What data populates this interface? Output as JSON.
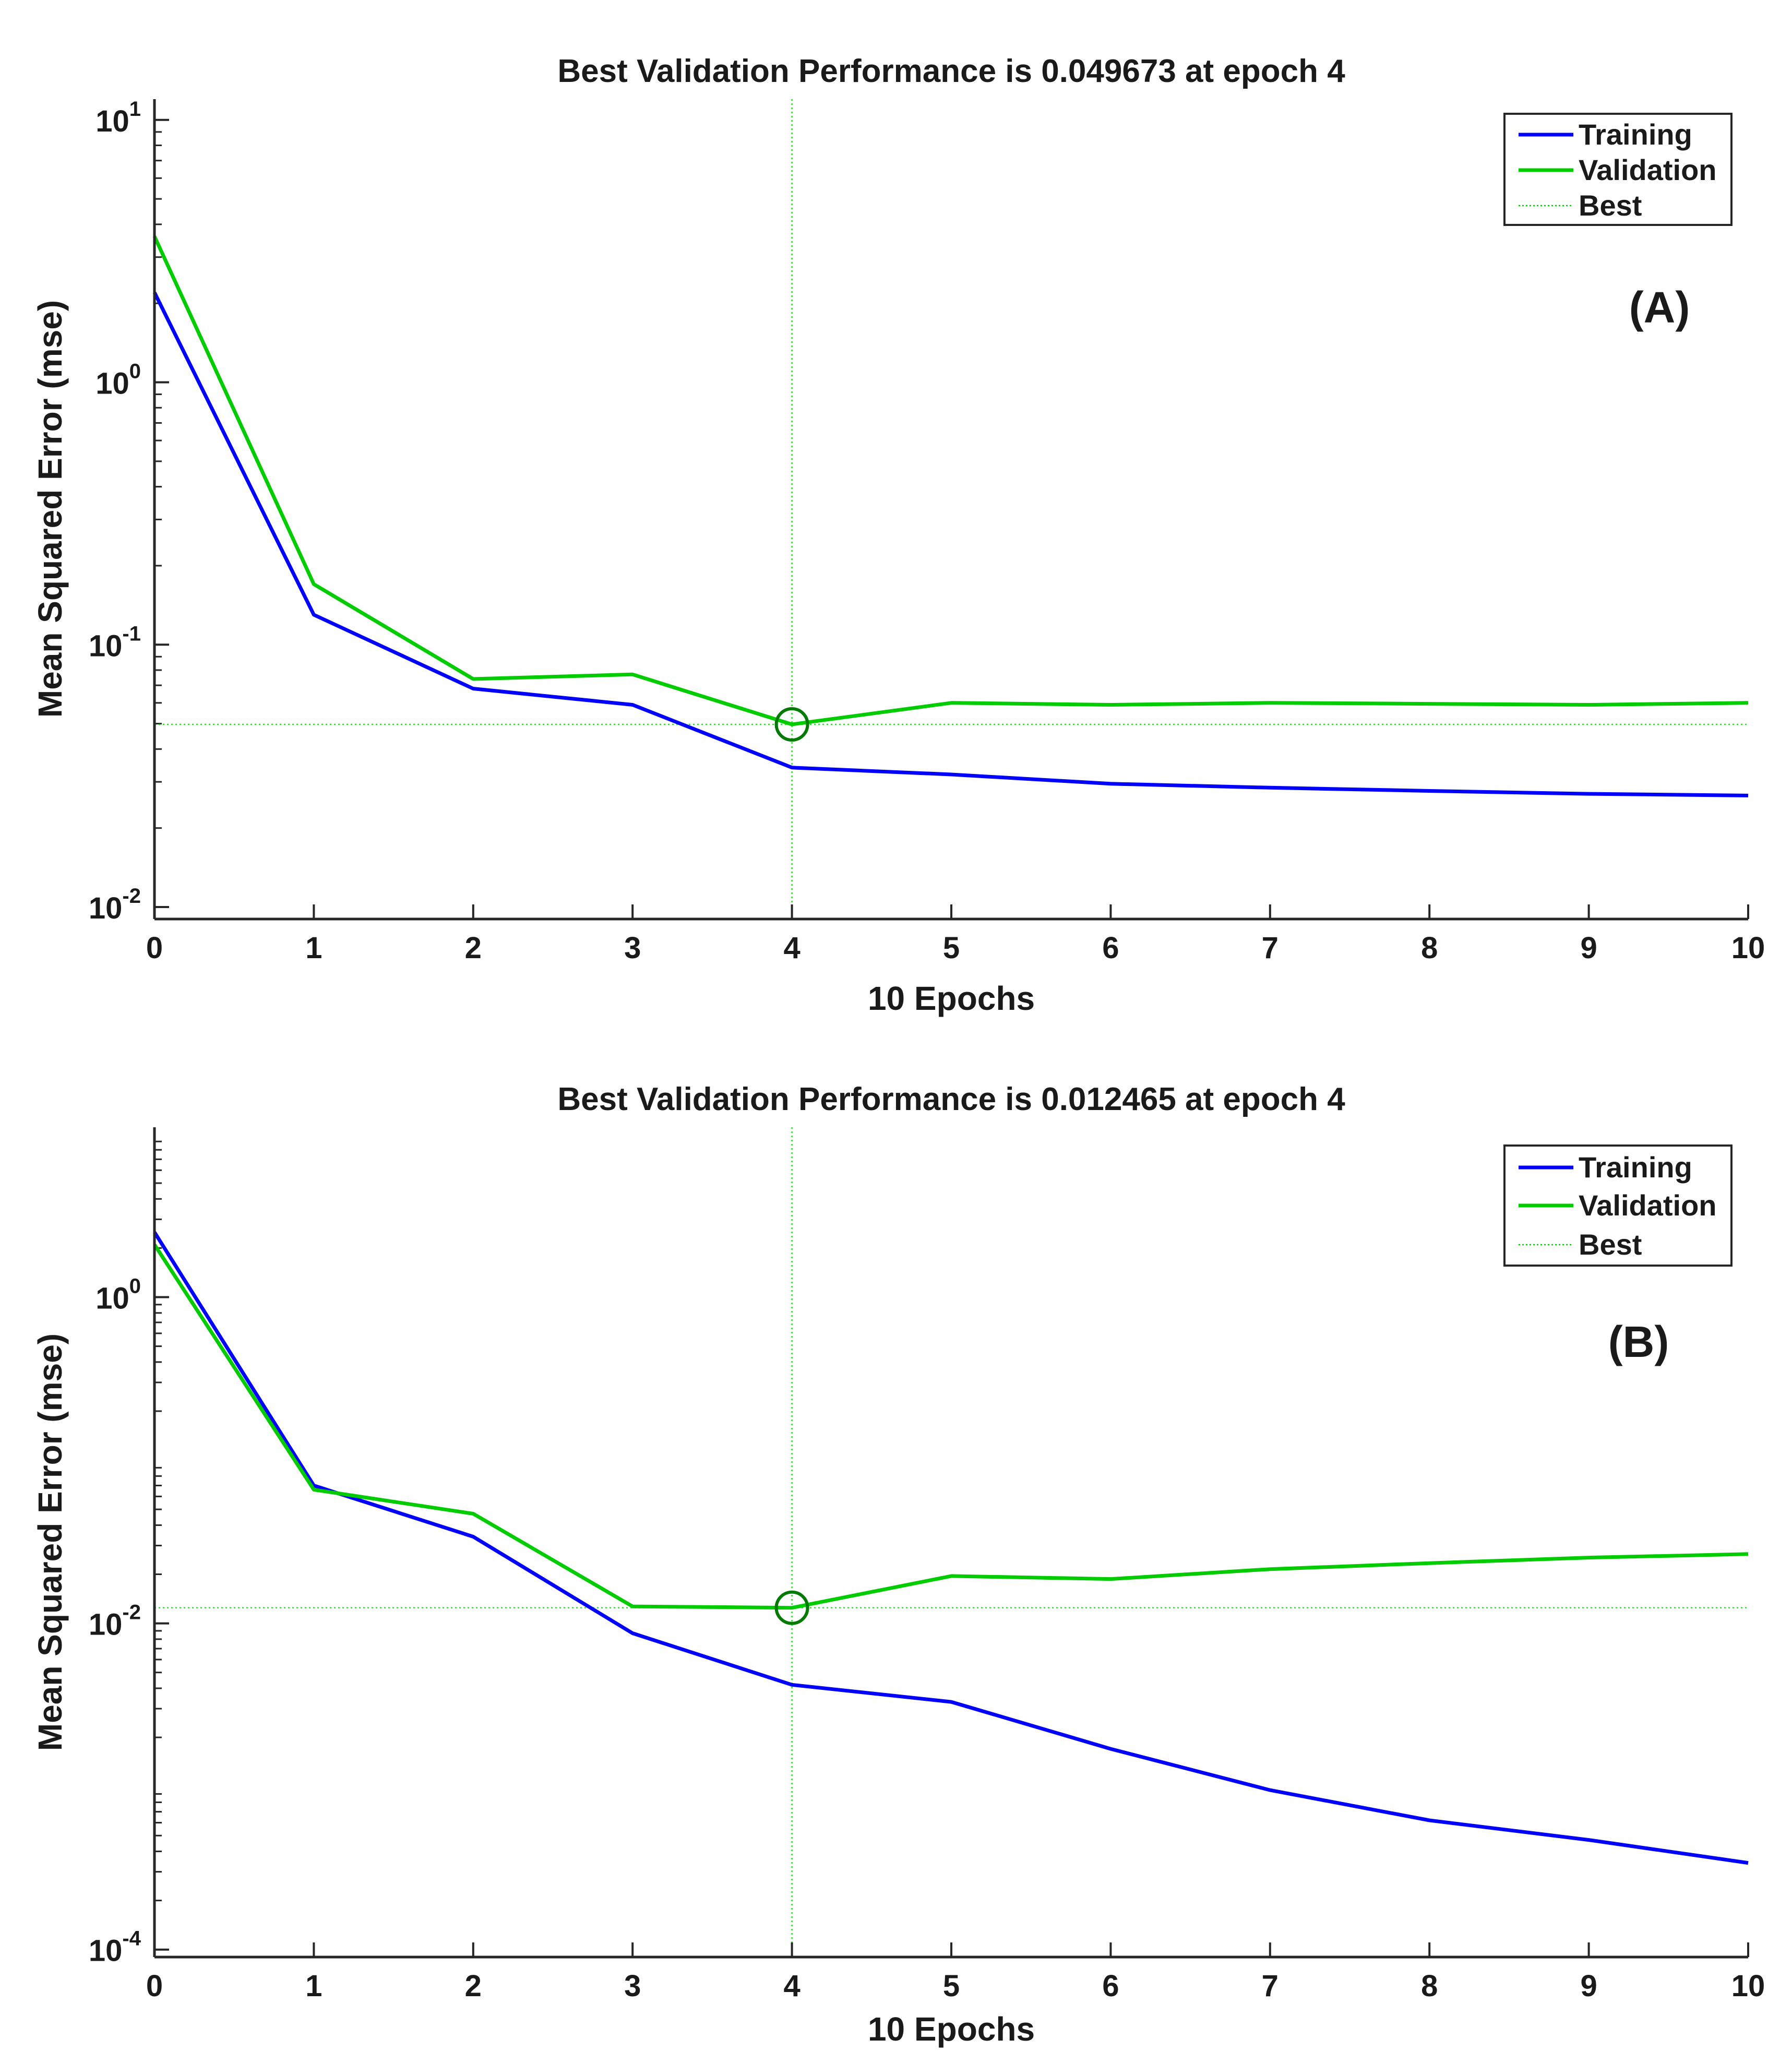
{
  "chart_data": [
    {
      "type": "line",
      "panel_label": "(A)",
      "title": "Best Validation Performance is 0.049673 at epoch 4",
      "xlabel": "10 Epochs",
      "ylabel": "Mean Squared Error  (mse)",
      "xlim": [
        0,
        10
      ],
      "ylim": [
        0.009,
        12
      ],
      "yscale": "log",
      "x": [
        0,
        1,
        2,
        3,
        4,
        5,
        6,
        7,
        8,
        9,
        10
      ],
      "xticks": [
        "0",
        "1",
        "2",
        "3",
        "4",
        "5",
        "6",
        "7",
        "8",
        "9",
        "10"
      ],
      "yticks": [
        {
          "value": 10,
          "base": "10",
          "exp": "1"
        },
        {
          "value": 1,
          "base": "10",
          "exp": "0"
        },
        {
          "value": 0.1,
          "base": "10",
          "exp": "-1"
        },
        {
          "value": 0.01,
          "base": "10",
          "exp": "-2"
        }
      ],
      "series": [
        {
          "name": "Training",
          "color": "#0000ff",
          "values": [
            2.2,
            0.13,
            0.068,
            0.059,
            0.034,
            0.032,
            0.0295,
            0.0285,
            0.0277,
            0.027,
            0.0266
          ]
        },
        {
          "name": "Validation",
          "color": "#00cc00",
          "values": [
            3.6,
            0.17,
            0.074,
            0.077,
            0.049673,
            0.06,
            0.059,
            0.06,
            0.0595,
            0.059,
            0.06
          ]
        }
      ],
      "best": {
        "name": "Best",
        "epoch": 4,
        "value": 0.049673,
        "color": "#00cc00"
      },
      "legend": {
        "position": "top-right",
        "entries": [
          "Training",
          "Validation",
          "Best"
        ]
      }
    },
    {
      "type": "line",
      "panel_label": "(B)",
      "title": "Best Validation Performance is 0.012465 at epoch 4",
      "xlabel": "10 Epochs",
      "ylabel": "Mean Squared Error  (mse)",
      "xlim": [
        0,
        10
      ],
      "ylim": [
        9e-05,
        11
      ],
      "yscale": "log",
      "x": [
        0,
        1,
        2,
        3,
        4,
        5,
        6,
        7,
        8,
        9,
        10
      ],
      "xticks": [
        "0",
        "1",
        "2",
        "3",
        "4",
        "5",
        "6",
        "7",
        "8",
        "9",
        "10"
      ],
      "yticks": [
        {
          "value": 1,
          "base": "10",
          "exp": "0"
        },
        {
          "value": 0.01,
          "base": "10",
          "exp": "-2"
        },
        {
          "value": 0.0001,
          "base": "10",
          "exp": "-4"
        }
      ],
      "series": [
        {
          "name": "Training",
          "color": "#0000ff",
          "values": [
            2.5,
            0.07,
            0.034,
            0.0087,
            0.0042,
            0.0033,
            0.0017,
            0.00095,
            0.00062,
            0.00047,
            0.00034
          ]
        },
        {
          "name": "Validation",
          "color": "#00cc00",
          "values": [
            2.1,
            0.066,
            0.047,
            0.0127,
            0.012465,
            0.0195,
            0.0187,
            0.0215,
            0.0234,
            0.0253,
            0.0266
          ]
        }
      ],
      "best": {
        "name": "Best",
        "epoch": 4,
        "value": 0.012465,
        "color": "#00cc00"
      },
      "legend": {
        "position": "top-right",
        "entries": [
          "Training",
          "Validation",
          "Best"
        ]
      }
    }
  ]
}
